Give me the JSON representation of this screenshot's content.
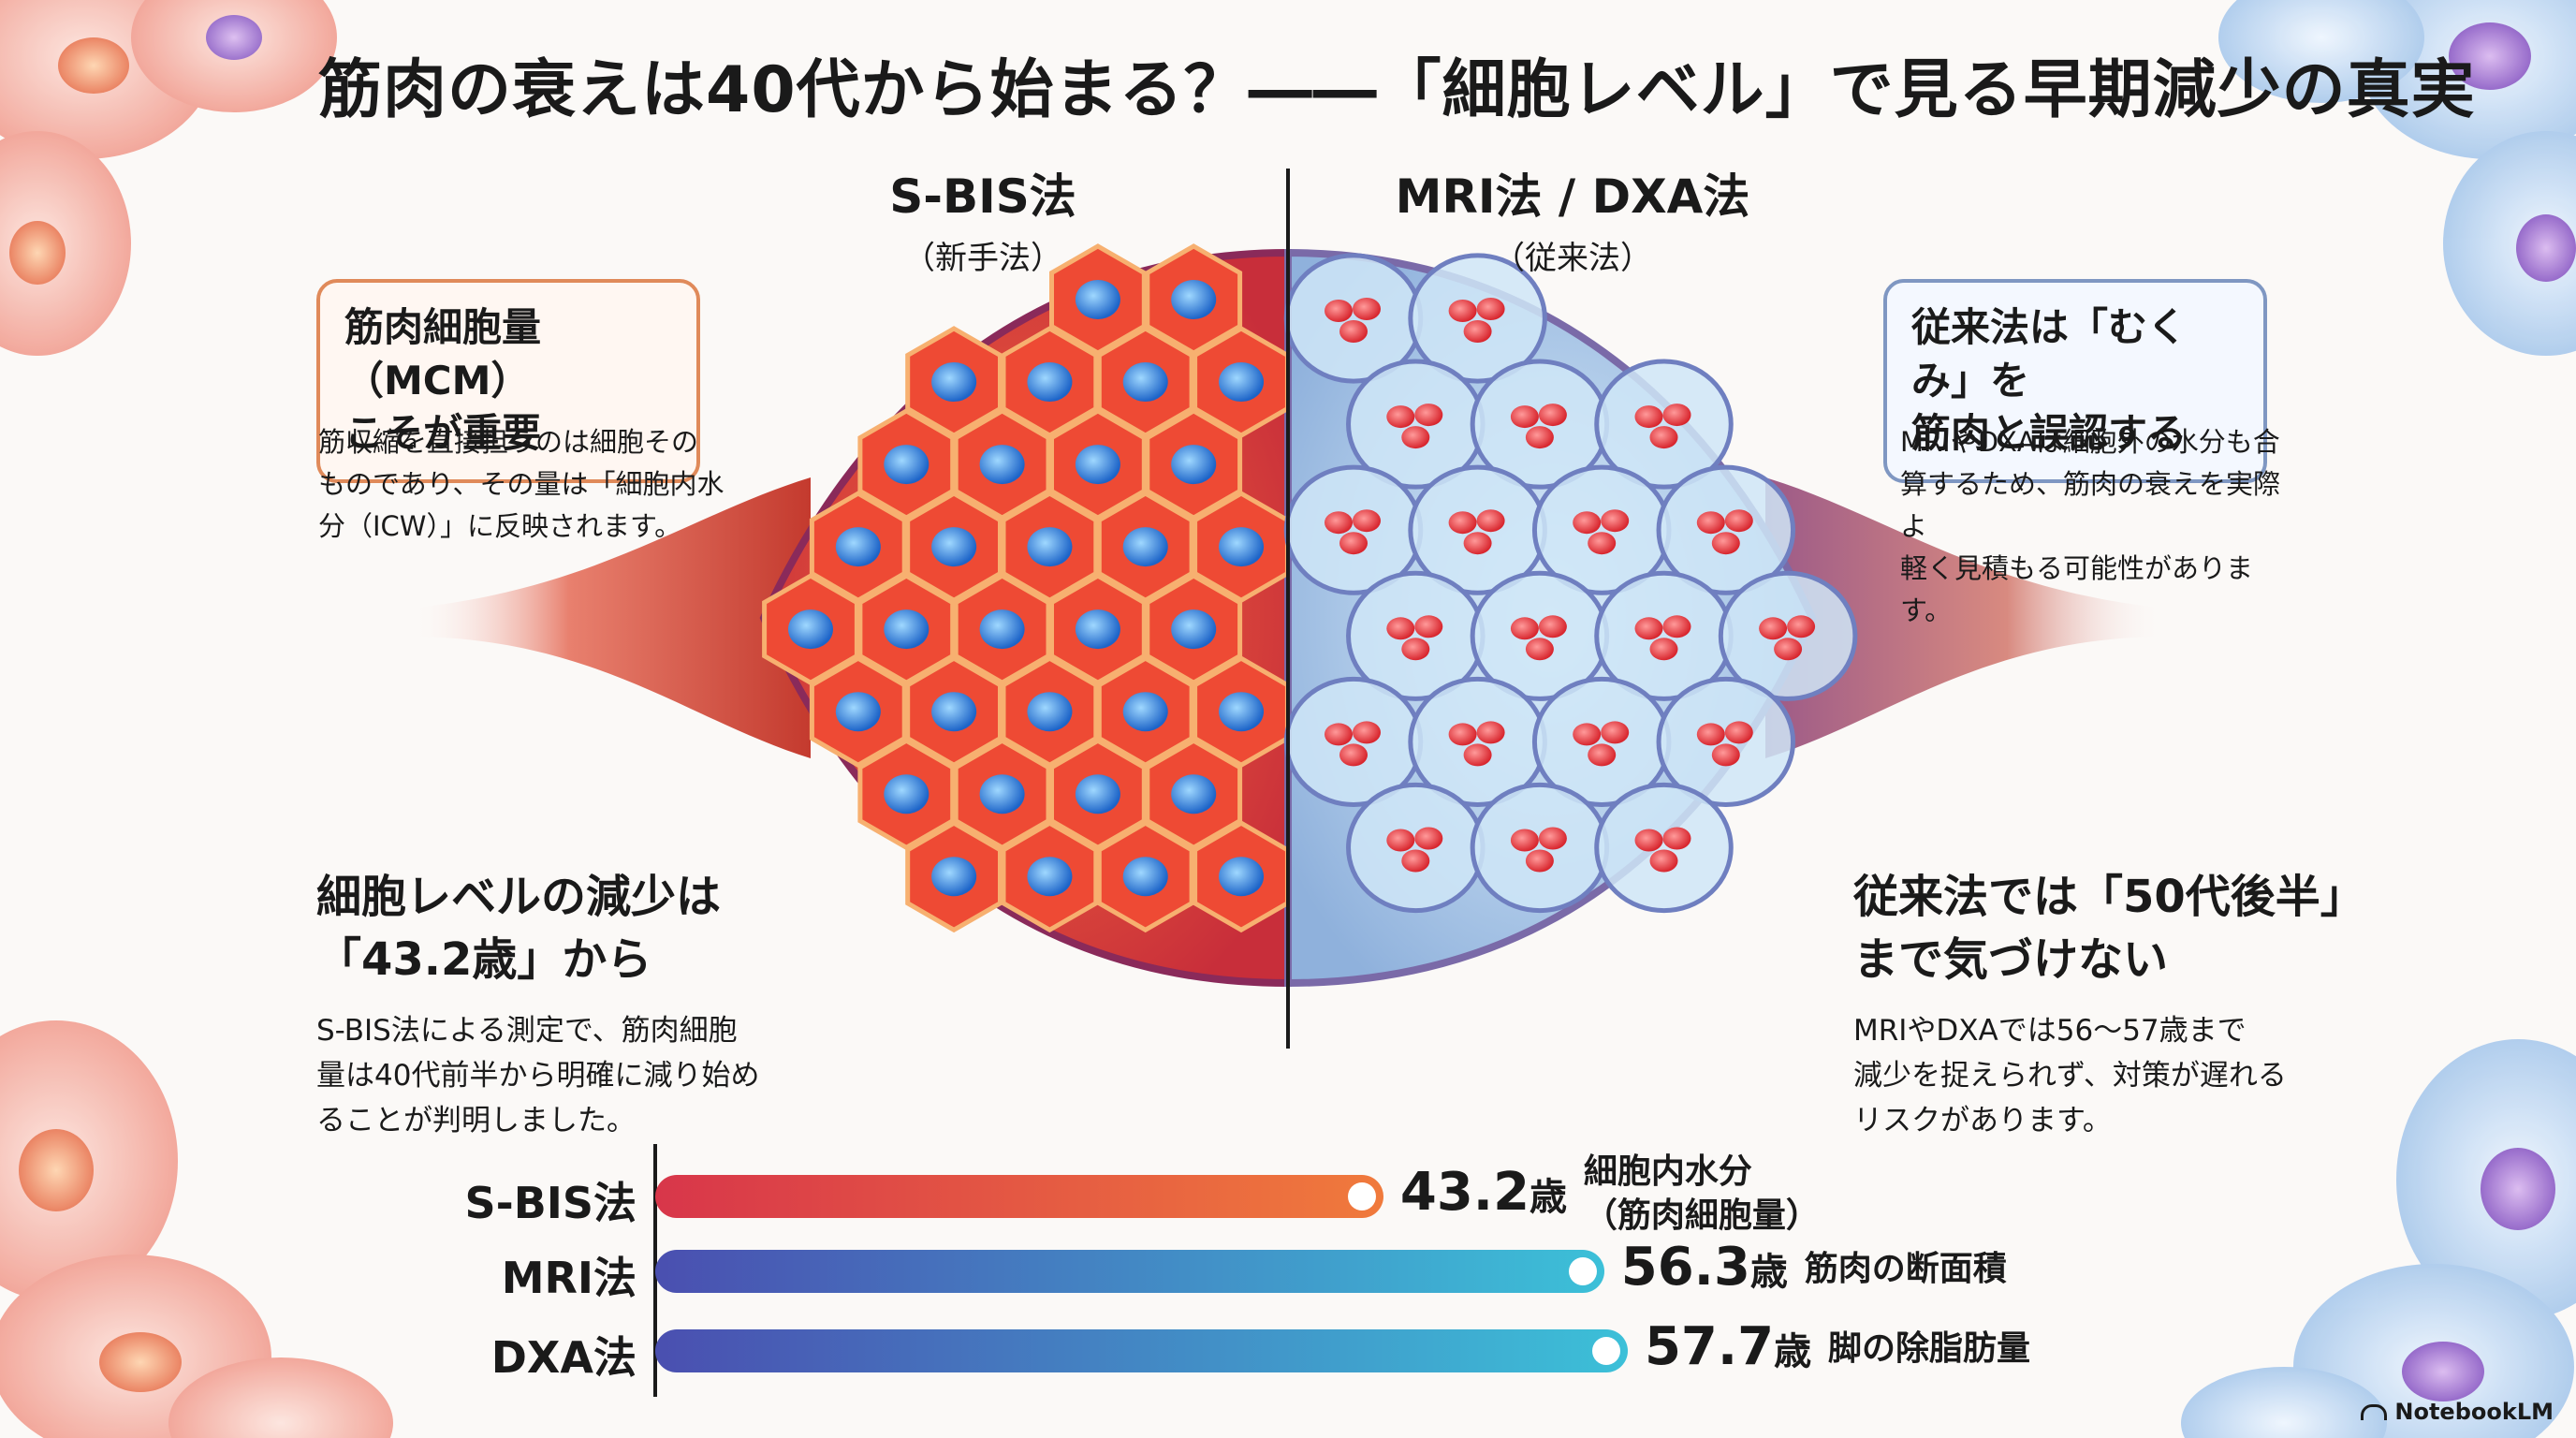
{
  "title": "筋肉の衰えは40代から始まる？――「細胞レベル」で見る早期減少の真実",
  "left_method": {
    "name": "S-BIS法",
    "sub": "（新手法）"
  },
  "right_method": {
    "name": "MRI法 / DXA法",
    "sub": "（従来法）"
  },
  "left_callout": {
    "line1": "筋肉細胞量（MCM）",
    "line2": "こそが重要"
  },
  "left_callout_text": [
    "筋収縮を直接担うのは細胞その",
    "ものであり、その量は「細胞内水",
    "分（ICW）」に反映されます。"
  ],
  "right_callout": {
    "line1": "従来法は「むくみ」を",
    "line2": "筋肉と誤認する"
  },
  "right_callout_text": [
    "MRIやDXAは細胞外の水分も合",
    "算するため、筋肉の衰えを実際よ",
    "軽く見積もる可能性があります。"
  ],
  "left_finding": {
    "head1": "細胞レベルの減少は",
    "head2": "「43.2歳」から",
    "text": [
      "S-BIS法による測定で、筋肉細胞",
      "量は40代前半から明確に減り始め",
      "ることが判明しました。"
    ]
  },
  "right_finding": {
    "head1": "従来法では「50代後半」",
    "head2": "まで気づけない",
    "text": [
      "MRIやDXAでは56〜57歳まで",
      "減少を捉えられず、対策が遅れる",
      "リスクがあります。"
    ]
  },
  "bars": [
    {
      "label": "S-BIS法",
      "value": 43.2,
      "value_text": "43.2",
      "unit": "歳",
      "desc1": "細胞内水分",
      "desc2": "（筋肉細胞量）",
      "color_start": "#d8364a",
      "color_end": "#f07a3c"
    },
    {
      "label": "MRI法",
      "value": 56.3,
      "value_text": "56.3",
      "unit": "歳",
      "desc1": "筋肉の断面積",
      "desc2": "",
      "color_start": "#4a4fb0",
      "color_end": "#3cc0d8"
    },
    {
      "label": "DXA法",
      "value": 57.7,
      "value_text": "57.7",
      "unit": "歳",
      "desc1": "脚の除脂肪量",
      "desc2": "",
      "color_start": "#4a4fb0",
      "color_end": "#3cc0d8"
    }
  ],
  "brand": "NotebookLM",
  "colors": {
    "muscle_red": "#e5473a",
    "cell_blue": "#a9d1ee",
    "accent_orange": "#e08a5a"
  }
}
